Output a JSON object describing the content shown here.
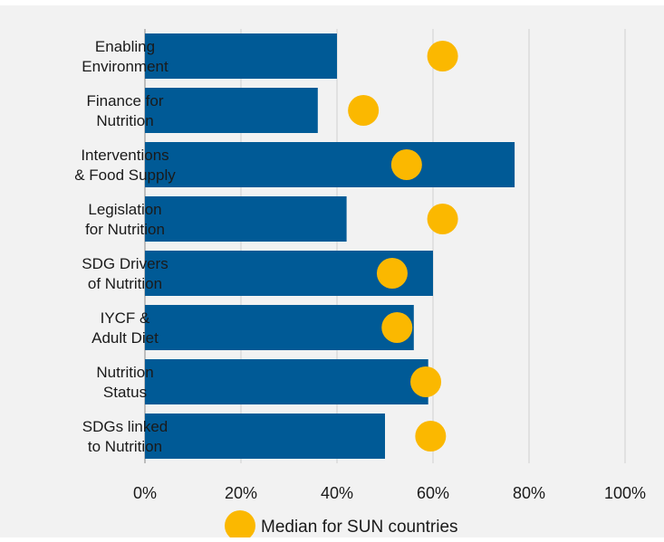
{
  "chart_data": {
    "type": "bar",
    "orientation": "horizontal",
    "categories": [
      [
        "Enabling",
        "Environment"
      ],
      [
        "Finance for",
        "Nutrition"
      ],
      [
        "Interventions",
        "& Food Supply"
      ],
      [
        "Legislation",
        "for Nutrition"
      ],
      [
        "SDG Drivers",
        "of Nutrition"
      ],
      [
        "IYCF &",
        "Adult Diet"
      ],
      [
        "Nutrition",
        "Status"
      ],
      [
        "SDGs linked",
        "to Nutrition"
      ]
    ],
    "values": [
      0.4,
      0.36,
      0.77,
      0.42,
      0.6,
      0.56,
      0.59,
      0.5
    ],
    "markers": {
      "name": "Median for SUN countries",
      "values": [
        0.62,
        0.455,
        0.545,
        0.62,
        0.515,
        0.525,
        0.585,
        0.595
      ]
    },
    "x_ticks": [
      "0%",
      "20%",
      "40%",
      "60%",
      "80%",
      "100%"
    ],
    "xlim": [
      0,
      1
    ],
    "grid": "vertical",
    "legend": "bottom",
    "colors": {
      "background": "#f2f2f2",
      "bar": "#005a96",
      "marker": "#fbb800",
      "grid": "#d0d0d0",
      "axis": "#888888"
    }
  }
}
